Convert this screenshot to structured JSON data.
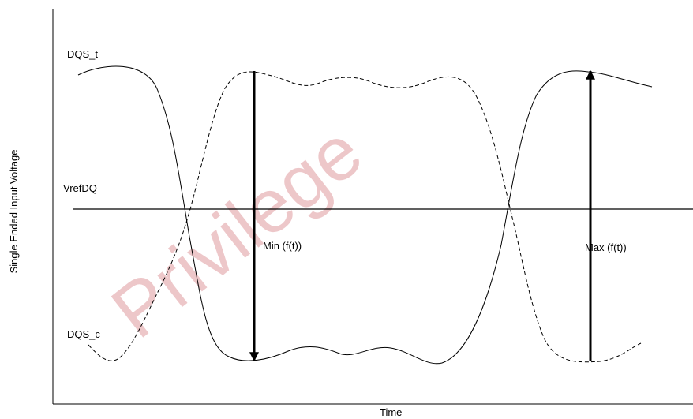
{
  "title": "",
  "axes": {
    "x_label": "Time",
    "y_label": "Single Ended Input Voltage"
  },
  "signals": {
    "true_label": "DQS_t",
    "complement_label": "DQS_c",
    "reference_label": "VrefDQ"
  },
  "annotations": {
    "min_label": "Min (f(t))",
    "max_label": "Max (f(t))"
  },
  "watermark": {
    "text": "Privilege"
  },
  "colors": {
    "line": "#000000",
    "watermark": "#d9848a"
  }
}
